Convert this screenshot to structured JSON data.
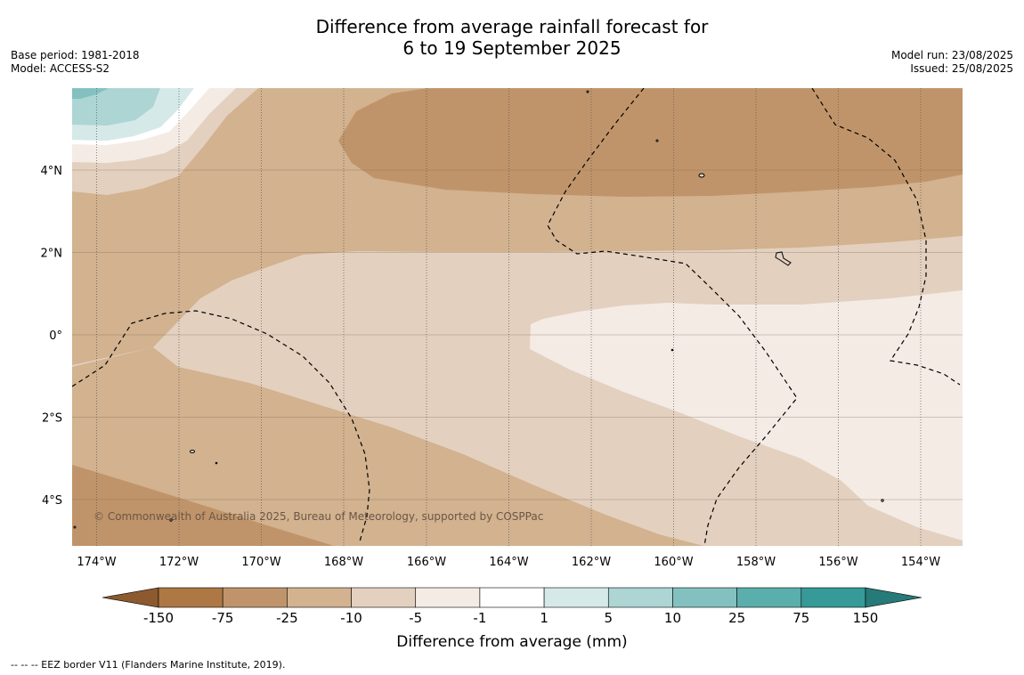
{
  "title_line1": "Difference from average rainfall forecast for",
  "title_line2": "6 to 19 September 2025",
  "base_period": "Base period: 1981-2018",
  "model": "Model: ACCESS-S2",
  "model_run": "Model run: 23/08/2025",
  "issued": "Issued: 25/08/2025",
  "copyright": "© Commonwealth of Australia 2025, Bureau of Meteorology, supported by COSPPac",
  "lat_labels": [
    "4°N",
    "2°N",
    "0°",
    "2°S",
    "4°S"
  ],
  "lon_labels": [
    "174°W",
    "172°W",
    "170°W",
    "168°W",
    "166°W",
    "164°W",
    "162°W",
    "160°W",
    "158°W",
    "156°W",
    "154°W"
  ],
  "colorbar": {
    "title": "Difference from average (mm)",
    "ticks": [
      "-150",
      "-75",
      "-25",
      "-10",
      "-5",
      "-1",
      "1",
      "5",
      "10",
      "25",
      "75",
      "150"
    ],
    "colors": [
      "#8c5a2e",
      "#ad7843",
      "#c0946a",
      "#d2b28f",
      "#e3d0bf",
      "#f4ebe5",
      "#ffffff",
      "#d5eae8",
      "#acd5d4",
      "#82c1c0",
      "#5aaeac",
      "#359a98",
      "#267a78"
    ]
  },
  "footer": "--  --  -- EEZ border V11 (Flanders Marine Institute, 2019)."
}
